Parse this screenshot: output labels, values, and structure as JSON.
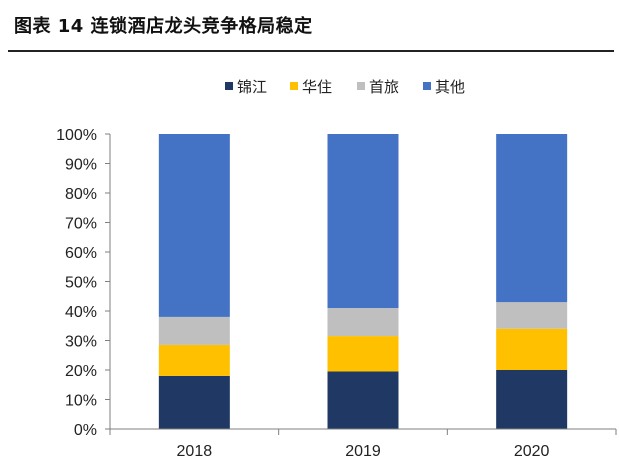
{
  "figure_title": "图表 14 连锁酒店龙头竞争格局稳定",
  "chart_data": {
    "type": "bar",
    "stacked": true,
    "categories": [
      "2018",
      "2019",
      "2020"
    ],
    "series": [
      {
        "name": "锦江",
        "color": "#1f3864",
        "values": [
          18,
          19.5,
          20
        ]
      },
      {
        "name": "华住",
        "color": "#ffc000",
        "values": [
          10.5,
          12,
          14
        ]
      },
      {
        "name": "首旅",
        "color": "#bfbfbf",
        "values": [
          9.5,
          9.5,
          9
        ]
      },
      {
        "name": "其他",
        "color": "#4472c4",
        "values": [
          62,
          59,
          57
        ]
      }
    ],
    "ylim": [
      0,
      100
    ],
    "yticks": [
      "0%",
      "10%",
      "20%",
      "30%",
      "40%",
      "50%",
      "60%",
      "70%",
      "80%",
      "90%",
      "100%"
    ],
    "legend_position": "top-center",
    "grid": false
  }
}
